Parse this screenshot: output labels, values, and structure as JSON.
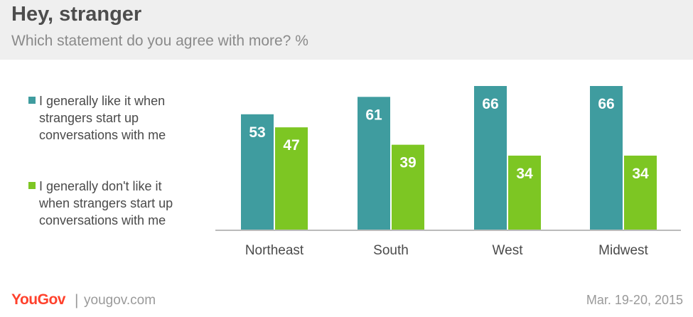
{
  "header": {
    "title": "Hey, stranger",
    "subtitle": "Which statement do you agree with more? %"
  },
  "colors": {
    "series_like": "#3f9c9f",
    "series_dislike": "#7dc623",
    "axis": "#bbbbbb",
    "header_bg": "#efefef",
    "brand": "#ff412c"
  },
  "chart_data": {
    "type": "bar",
    "title": "Hey, stranger",
    "subtitle": "Which statement do you agree with more? %",
    "categories": [
      "Northeast",
      "South",
      "West",
      "Midwest"
    ],
    "series": [
      {
        "name": "I generally like it when\nstrangers start up\nconversations with me",
        "values": [
          53,
          61,
          66,
          66
        ],
        "color": "#3f9c9f"
      },
      {
        "name": "I generally don't like it\nwhen strangers start up\nconversations with me",
        "values": [
          47,
          39,
          34,
          34
        ],
        "color": "#7dc623"
      }
    ],
    "ylim": [
      0,
      66
    ],
    "xlabel": "",
    "ylabel": "",
    "grid": false,
    "legend_position": "left",
    "data_labels": true
  },
  "footer": {
    "logo": "YouGov",
    "separator": "|",
    "url": "yougov.com",
    "date": "Mar. 19-20, 2015"
  }
}
